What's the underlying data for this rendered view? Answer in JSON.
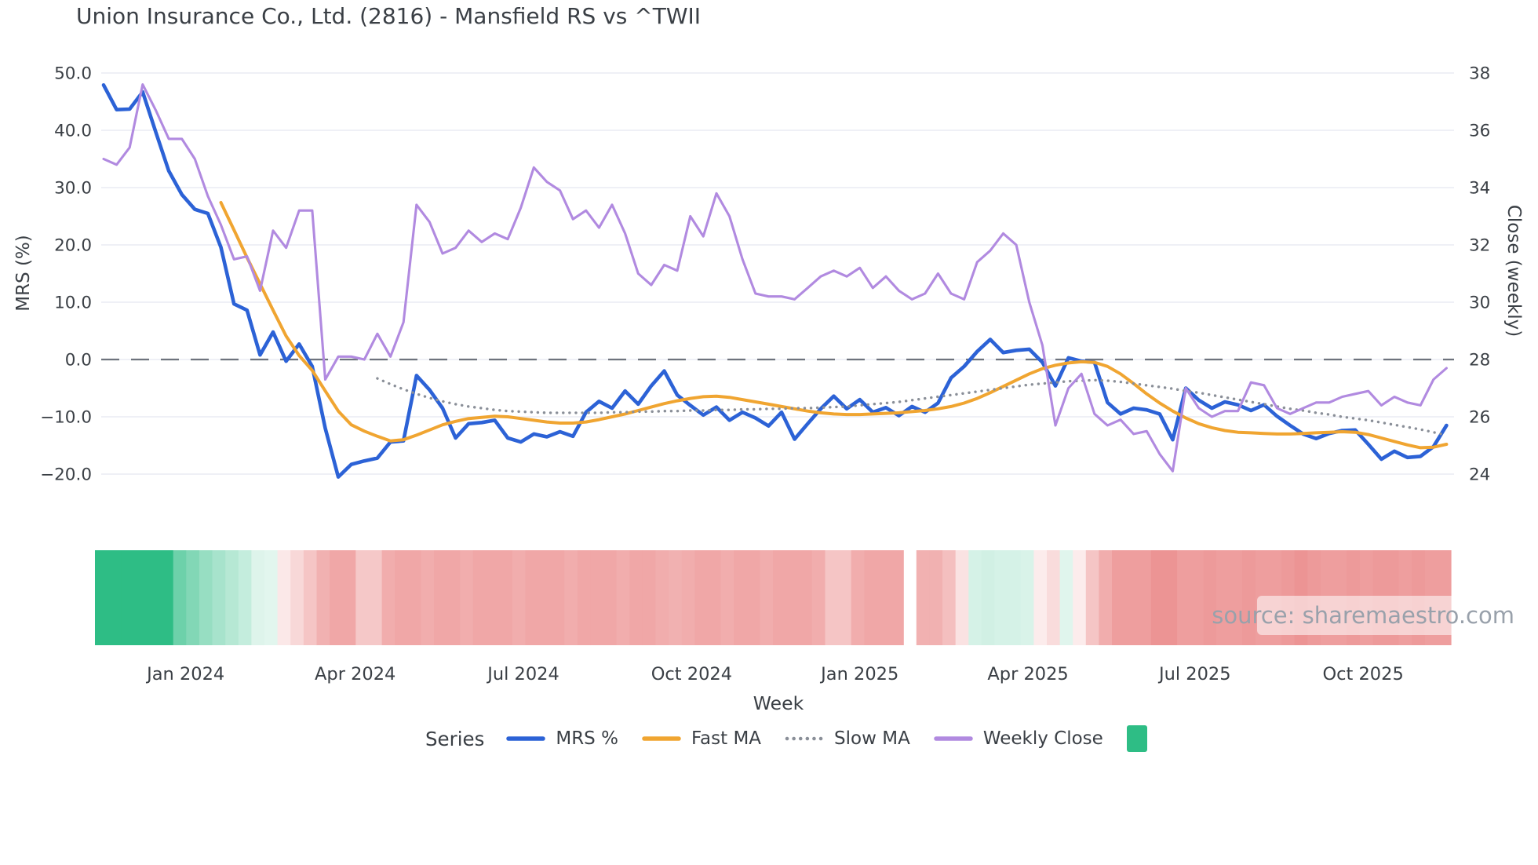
{
  "title": "Union Insurance Co., Ltd. (2816) - Mansfield RS vs ^TWII",
  "watermark": "source: sharemaestro.com",
  "axes": {
    "left": {
      "label": "MRS (%)",
      "ticks": [
        "50.0",
        "40.0",
        "30.0",
        "20.0",
        "10.0",
        "0.0",
        "−10.0",
        "−20.0"
      ],
      "tick_values": [
        50,
        40,
        30,
        20,
        10,
        0,
        -10,
        -20
      ]
    },
    "right": {
      "label": "Close (weekly)",
      "ticks": [
        "38",
        "36",
        "34",
        "32",
        "30",
        "28",
        "26",
        "24"
      ],
      "tick_values": [
        38,
        36,
        34,
        32,
        30,
        28,
        26,
        24
      ]
    },
    "x": {
      "label": "Week",
      "ticks": [
        {
          "label": "Jan 2024",
          "week": 6.3
        },
        {
          "label": "Apr 2024",
          "week": 19.3
        },
        {
          "label": "Jul 2024",
          "week": 32.2
        },
        {
          "label": "Oct 2024",
          "week": 45.1
        },
        {
          "label": "Jan 2025",
          "week": 58.0
        },
        {
          "label": "Apr 2025",
          "week": 70.9
        },
        {
          "label": "Jul 2025",
          "week": 83.7
        },
        {
          "label": "Oct 2025",
          "week": 96.6
        }
      ]
    }
  },
  "legend": {
    "title": "Series",
    "items": [
      {
        "label": "MRS %",
        "swatch": "line",
        "color": "#2c62d6"
      },
      {
        "label": "Fast MA",
        "swatch": "line",
        "color": "#f0a531"
      },
      {
        "label": "Slow MA",
        "swatch": "dotted",
        "color": "#8a8f98"
      },
      {
        "label": "Weekly Close",
        "swatch": "line",
        "color": "#b18ae0"
      },
      {
        "label": "",
        "swatch": "square",
        "color": "#2ebd85"
      }
    ]
  },
  "chart_data": {
    "type": "line",
    "title": "Union Insurance Co., Ltd. (2816) - Mansfield RS vs ^TWII",
    "xlabel": "Week",
    "x_range": "weekly points, late Nov 2023 - late Nov 2025",
    "weeks": 104,
    "left_ylabel": "MRS (%)",
    "left_ylim": [
      -21.5,
      51
    ],
    "right_ylabel": "Close (weekly)",
    "right_ylim": [
      23.7,
      38.2
    ],
    "grid": "horizontal only",
    "zero_line": {
      "value": 0,
      "style": "dashed",
      "color": "#6e737d"
    },
    "series": [
      {
        "name": "MRS %",
        "axis": "left",
        "color": "#2c62d6",
        "style": "solid",
        "width": 4.6,
        "values": [
          47.9,
          43.6,
          43.7,
          46.7,
          39.7,
          32.9,
          28.8,
          26.2,
          25.5,
          19.6,
          9.7,
          8.6,
          0.8,
          4.8,
          -0.3,
          2.7,
          -1.2,
          -12.0,
          -20.5,
          -18.3,
          -17.7,
          -17.2,
          -14.4,
          -14.2,
          -2.8,
          -5.3,
          -8.5,
          -13.7,
          -11.2,
          -11.0,
          -10.6,
          -13.7,
          -14.4,
          -13.0,
          -13.5,
          -12.6,
          -13.4,
          -9.2,
          -7.3,
          -8.5,
          -5.5,
          -7.8,
          -4.6,
          -2.0,
          -6.2,
          -8.0,
          -9.7,
          -8.3,
          -10.6,
          -9.2,
          -10.2,
          -11.6,
          -9.2,
          -13.9,
          -11.2,
          -8.6,
          -6.4,
          -8.6,
          -7.0,
          -9.2,
          -8.4,
          -9.8,
          -8.2,
          -9.2,
          -7.6,
          -3.2,
          -1.2,
          1.4,
          3.5,
          1.2,
          1.6,
          1.8,
          -0.5,
          -4.6,
          0.3,
          -0.3,
          -0.5,
          -7.5,
          -9.5,
          -8.5,
          -8.8,
          -9.5,
          -14.0,
          -5.0,
          -7.1,
          -8.5,
          -7.4,
          -7.9,
          -8.9,
          -7.9,
          -9.9,
          -11.5,
          -13.0,
          -13.8,
          -12.9,
          -12.4,
          -12.3,
          -14.8,
          -17.4,
          -16.0,
          -17.1,
          -16.9,
          -15.2,
          -11.5
        ]
      },
      {
        "name": "Fast MA",
        "axis": "left",
        "color": "#f0a531",
        "style": "solid",
        "width": 4,
        "values": [
          null,
          null,
          null,
          null,
          null,
          null,
          null,
          null,
          null,
          27.4,
          22.6,
          17.8,
          13.2,
          8.6,
          4.1,
          0.7,
          -1.9,
          -5.5,
          -9.0,
          -11.4,
          -12.5,
          -13.4,
          -14.2,
          -14.0,
          -13.2,
          -12.3,
          -11.4,
          -10.8,
          -10.3,
          -10.1,
          -9.9,
          -10.0,
          -10.3,
          -10.6,
          -10.9,
          -11.1,
          -11.1,
          -10.9,
          -10.5,
          -10.0,
          -9.5,
          -8.9,
          -8.3,
          -7.7,
          -7.2,
          -6.8,
          -6.5,
          -6.4,
          -6.6,
          -7.0,
          -7.4,
          -7.8,
          -8.2,
          -8.6,
          -9.0,
          -9.3,
          -9.5,
          -9.6,
          -9.6,
          -9.5,
          -9.4,
          -9.3,
          -9.1,
          -8.9,
          -8.6,
          -8.2,
          -7.6,
          -6.8,
          -5.8,
          -4.7,
          -3.6,
          -2.5,
          -1.6,
          -1.0,
          -0.6,
          -0.4,
          -0.5,
          -1.2,
          -2.5,
          -4.2,
          -6.0,
          -7.6,
          -9.0,
          -10.2,
          -11.2,
          -11.9,
          -12.4,
          -12.7,
          -12.8,
          -12.9,
          -13.0,
          -13.0,
          -12.9,
          -12.8,
          -12.7,
          -12.6,
          -12.7,
          -13.1,
          -13.7,
          -14.3,
          -14.9,
          -15.4,
          -15.3,
          -14.8
        ]
      },
      {
        "name": "Slow MA",
        "axis": "left",
        "color": "#8a8f98",
        "style": "dotted",
        "width": 3.4,
        "values": [
          null,
          null,
          null,
          null,
          null,
          null,
          null,
          null,
          null,
          null,
          null,
          null,
          null,
          null,
          null,
          null,
          null,
          null,
          null,
          null,
          null,
          -3.3,
          -4.3,
          -5.2,
          -6.0,
          -6.7,
          -7.3,
          -7.8,
          -8.2,
          -8.5,
          -8.8,
          -9.0,
          -9.1,
          -9.2,
          -9.3,
          -9.3,
          -9.3,
          -9.3,
          -9.3,
          -9.2,
          -9.2,
          -9.1,
          -9.1,
          -9.0,
          -9.0,
          -8.9,
          -8.9,
          -8.8,
          -8.8,
          -8.7,
          -8.7,
          -8.6,
          -8.6,
          -8.5,
          -8.5,
          -8.4,
          -8.3,
          -8.2,
          -8.0,
          -7.8,
          -7.6,
          -7.4,
          -7.1,
          -6.8,
          -6.5,
          -6.2,
          -5.9,
          -5.6,
          -5.3,
          -5.0,
          -4.7,
          -4.4,
          -4.2,
          -4.0,
          -3.8,
          -3.7,
          -3.6,
          -3.7,
          -3.9,
          -4.2,
          -4.5,
          -4.8,
          -5.1,
          -5.5,
          -5.8,
          -6.2,
          -6.6,
          -7.0,
          -7.4,
          -7.8,
          -8.2,
          -8.6,
          -8.9,
          -9.3,
          -9.6,
          -10.0,
          -10.3,
          -10.6,
          -11.0,
          -11.4,
          -11.8,
          -12.2,
          -12.7,
          -13.2
        ]
      },
      {
        "name": "Weekly Close",
        "axis": "right",
        "color": "#b18ae0",
        "style": "solid",
        "width": 3.1,
        "values": [
          35.0,
          34.8,
          35.4,
          37.6,
          36.7,
          35.7,
          35.7,
          35.0,
          33.7,
          32.7,
          31.5,
          31.6,
          30.4,
          32.5,
          31.9,
          33.2,
          33.2,
          27.3,
          28.1,
          28.1,
          28.0,
          28.9,
          28.1,
          29.3,
          33.4,
          32.8,
          31.7,
          31.9,
          32.5,
          32.1,
          32.4,
          32.2,
          33.3,
          34.7,
          34.2,
          33.9,
          32.9,
          33.2,
          32.6,
          33.4,
          32.4,
          31.0,
          30.6,
          31.3,
          31.1,
          33.0,
          32.3,
          33.8,
          33.0,
          31.5,
          30.3,
          30.2,
          30.2,
          30.1,
          30.5,
          30.9,
          31.1,
          30.9,
          31.2,
          30.5,
          30.9,
          30.4,
          30.1,
          30.3,
          31.0,
          30.3,
          30.1,
          31.4,
          31.8,
          32.4,
          32.0,
          30.0,
          28.5,
          25.7,
          27.0,
          27.5,
          26.1,
          25.7,
          25.9,
          25.4,
          25.5,
          24.7,
          24.1,
          27.0,
          26.3,
          26.0,
          26.2,
          26.2,
          27.2,
          27.1,
          26.3,
          26.1,
          26.3,
          26.5,
          26.5,
          26.7,
          26.8,
          26.9,
          26.4,
          26.7,
          26.5,
          26.4,
          27.3,
          27.7
        ]
      }
    ],
    "heatmap": {
      "description": "weekly strip under chart; green positive momentum, red negative; intensity -1..1",
      "color_positive": "#2ebd85",
      "color_negative": "#dd3c3c",
      "gap_week": 62,
      "heat": [
        1,
        1,
        1,
        1,
        1,
        1,
        0.7,
        0.6,
        0.5,
        0.42,
        0.35,
        0.28,
        0.16,
        0.14,
        -0.12,
        -0.2,
        -0.3,
        -0.4,
        -0.45,
        -0.45,
        -0.28,
        -0.28,
        -0.42,
        -0.45,
        -0.45,
        -0.42,
        -0.45,
        -0.45,
        -0.42,
        -0.45,
        -0.45,
        -0.45,
        -0.42,
        -0.45,
        -0.45,
        -0.45,
        -0.42,
        -0.45,
        -0.45,
        -0.45,
        -0.42,
        -0.45,
        -0.45,
        -0.42,
        -0.4,
        -0.42,
        -0.45,
        -0.45,
        -0.42,
        -0.45,
        -0.45,
        -0.42,
        -0.45,
        -0.45,
        -0.45,
        -0.42,
        -0.3,
        -0.3,
        -0.42,
        -0.45,
        -0.45,
        -0.45,
        null,
        -0.4,
        -0.4,
        -0.33,
        -0.15,
        0.2,
        0.22,
        0.2,
        0.2,
        0.18,
        -0.1,
        -0.18,
        0.15,
        -0.1,
        -0.3,
        -0.42,
        -0.5,
        -0.5,
        -0.5,
        -0.55,
        -0.55,
        -0.5,
        -0.5,
        -0.52,
        -0.5,
        -0.5,
        -0.52,
        -0.5,
        -0.5,
        -0.52,
        -0.55,
        -0.52,
        -0.5,
        -0.5,
        -0.52,
        -0.5,
        -0.52,
        -0.52,
        -0.5,
        -0.52,
        -0.5,
        -0.5
      ]
    }
  }
}
